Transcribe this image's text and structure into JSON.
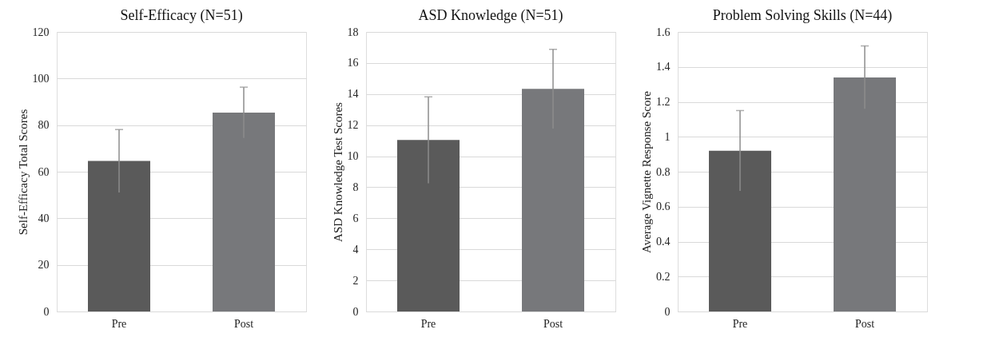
{
  "chart_data": [
    {
      "type": "bar",
      "title": "Self-Efficacy (N=51)",
      "ylabel": "Self-Efficacy Total Scores",
      "categories": [
        "Pre",
        "Post"
      ],
      "values": [
        64.6,
        85.4
      ],
      "errors": [
        13.5,
        10.9
      ],
      "colors": [
        "#5a5a5a",
        "#77787b"
      ],
      "ylim": [
        0,
        120
      ],
      "yticks": [
        0,
        20,
        40,
        60,
        80,
        100,
        120
      ],
      "grid": "y"
    },
    {
      "type": "bar",
      "title": "ASD Knowledge (N=51)",
      "ylabel": "ASD Knowledge Test Scores",
      "categories": [
        "Pre",
        "Post"
      ],
      "values": [
        11.04,
        14.33
      ],
      "errors": [
        2.78,
        2.55
      ],
      "colors": [
        "#5a5a5a",
        "#77787b"
      ],
      "ylim": [
        0,
        18
      ],
      "yticks": [
        0,
        2,
        4,
        6,
        8,
        10,
        12,
        14,
        16,
        18
      ],
      "grid": "y"
    },
    {
      "type": "bar",
      "title": "Problem Solving Skills (N=44)",
      "ylabel": "Average Vignette Response Score",
      "categories": [
        "Pre",
        "Post"
      ],
      "values": [
        0.92,
        1.34
      ],
      "errors": [
        0.23,
        0.18
      ],
      "colors": [
        "#5a5a5a",
        "#77787b"
      ],
      "ylim": [
        0,
        1.6
      ],
      "yticks": [
        0,
        0.2,
        0.4,
        0.6,
        0.8,
        1,
        1.2,
        1.4,
        1.6
      ],
      "grid": "y"
    }
  ]
}
